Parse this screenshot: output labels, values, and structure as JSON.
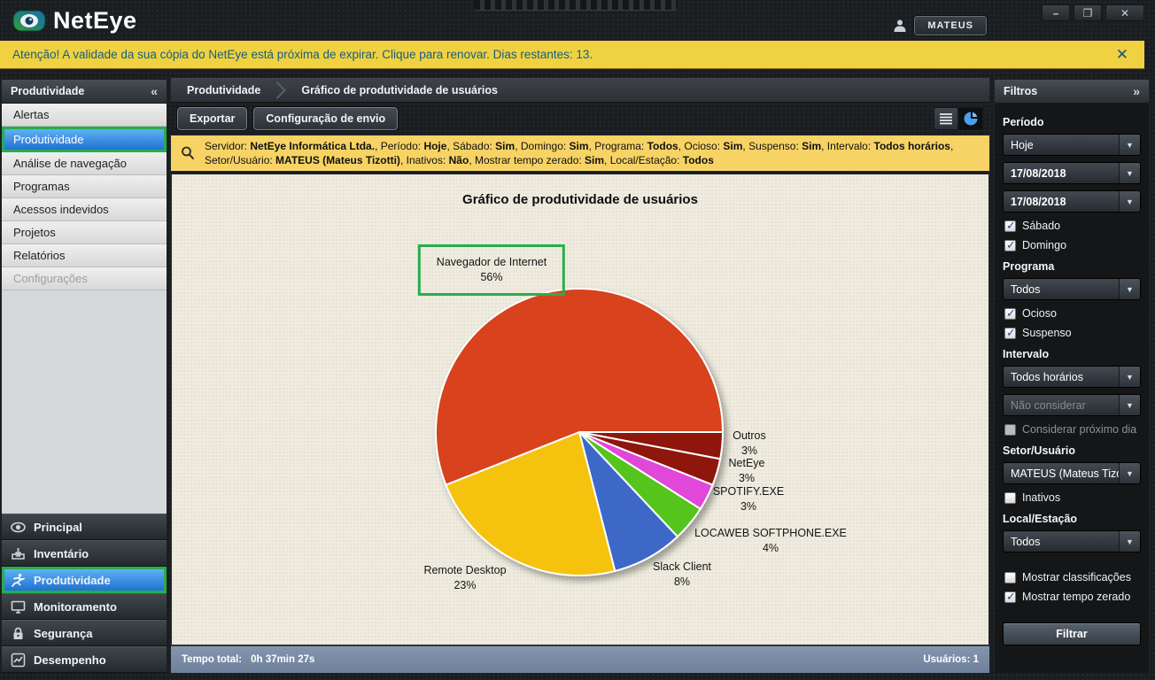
{
  "window": {
    "app_name": "NetEye",
    "user_label": "MATEUS",
    "controls": {
      "minimize": "–",
      "restore": "❐",
      "close": "✕"
    }
  },
  "banner": {
    "text": "Atenção! A validade da sua cópia do NetEye está próxima de expirar. Clique para renovar. Dias restantes: 13.",
    "close": "✕"
  },
  "sidebar": {
    "title": "Produtividade",
    "collapse_icon": "«",
    "items": [
      {
        "label": "Alertas"
      },
      {
        "label": "Produtividade",
        "selected": true
      },
      {
        "label": "Análise de navegação"
      },
      {
        "label": "Programas"
      },
      {
        "label": "Acessos indevidos"
      },
      {
        "label": "Projetos"
      },
      {
        "label": "Relatórios"
      },
      {
        "label": "Configurações",
        "disabled": true
      }
    ],
    "modules": [
      {
        "label": "Principal",
        "icon": "eye-icon"
      },
      {
        "label": "Inventário",
        "icon": "inventory-icon"
      },
      {
        "label": "Produtividade",
        "icon": "runner-icon",
        "selected": true
      },
      {
        "label": "Monitoramento",
        "icon": "monitor-icon"
      },
      {
        "label": "Segurança",
        "icon": "lock-icon"
      },
      {
        "label": "Desempenho",
        "icon": "performance-icon"
      }
    ]
  },
  "breadcrumb": {
    "crumb1": "Produtividade",
    "crumb2": "Gráfico de produtividade de usuários"
  },
  "toolbar": {
    "export_label": "Exportar",
    "send_config_label": "Configuração de envio",
    "view_toggles": {
      "list_active": false,
      "chart_active": true
    }
  },
  "filter_summary": {
    "line1": [
      [
        "Servidor",
        "NetEye Informática Ltda."
      ],
      [
        "Período",
        "Hoje"
      ],
      [
        "Sábado",
        "Sim"
      ],
      [
        "Domingo",
        "Sim"
      ],
      [
        "Programa",
        "Todos"
      ],
      [
        "Ocioso",
        "Sim"
      ],
      [
        "Suspenso",
        "Sim"
      ],
      [
        "Intervalo",
        "Todos horários"
      ]
    ],
    "line1_suffix": ",",
    "line2": [
      [
        "Setor/Usuário",
        "MATEUS (Mateus Tizotti)"
      ],
      [
        "Inativos",
        "Não"
      ],
      [
        "Mostrar tempo zerado",
        "Sim"
      ],
      [
        "Local/Estação",
        "Todos"
      ]
    ]
  },
  "chart_data": {
    "type": "pie",
    "title": "Gráfico de produtividade de usuários",
    "unit": "%",
    "legend_position": "labels-around-pie",
    "slices": [
      {
        "label": "Navegador de Internet",
        "value": 56,
        "color": "#d8431d",
        "highlighted": true
      },
      {
        "label": "Remote Desktop",
        "value": 23,
        "color": "#f5c30f"
      },
      {
        "label": "Slack Client",
        "value": 8,
        "color": "#3c68c8"
      },
      {
        "label": "LOCAWEB SOFTPHONE.EXE",
        "value": 4,
        "color": "#55c41f"
      },
      {
        "label": "SPOTIFY.EXE",
        "value": 3,
        "color": "#e146d9"
      },
      {
        "label": "NetEye",
        "value": 3,
        "color": "#8e160d"
      },
      {
        "label": "Outros",
        "value": 3,
        "color": "#8e160d"
      }
    ]
  },
  "filters": {
    "title": "Filtros",
    "collapse_icon": "»",
    "periodo": {
      "label": "Período",
      "preset": "Hoje",
      "date_from": "17/08/2018",
      "date_to": "17/08/2018",
      "saturday": {
        "label": "Sábado",
        "checked": true
      },
      "sunday": {
        "label": "Domingo",
        "checked": true
      }
    },
    "programa": {
      "label": "Programa",
      "value": "Todos",
      "ocioso": {
        "label": "Ocioso",
        "checked": true
      },
      "suspenso": {
        "label": "Suspenso",
        "checked": true
      }
    },
    "intervalo": {
      "label": "Intervalo",
      "value": "Todos horários",
      "secondary_value": "Não considerar",
      "next_day": {
        "label": "Considerar próximo dia",
        "checked": false,
        "disabled": true
      }
    },
    "setor": {
      "label": "Setor/Usuário",
      "value": "MATEUS (Mateus Tizotti)",
      "inativos": {
        "label": "Inativos",
        "checked": false
      }
    },
    "local": {
      "label": "Local/Estação",
      "value": "Todos",
      "classificacoes": {
        "label": "Mostrar classificações",
        "checked": false
      },
      "tempo_zerado": {
        "label": "Mostrar tempo zerado",
        "checked": true
      }
    },
    "submit_label": "Filtrar"
  },
  "statusbar": {
    "tempo_total_label": "Tempo total:",
    "tempo_total_value": "0h 37min 27s",
    "usuarios": "Usuários: 1"
  }
}
